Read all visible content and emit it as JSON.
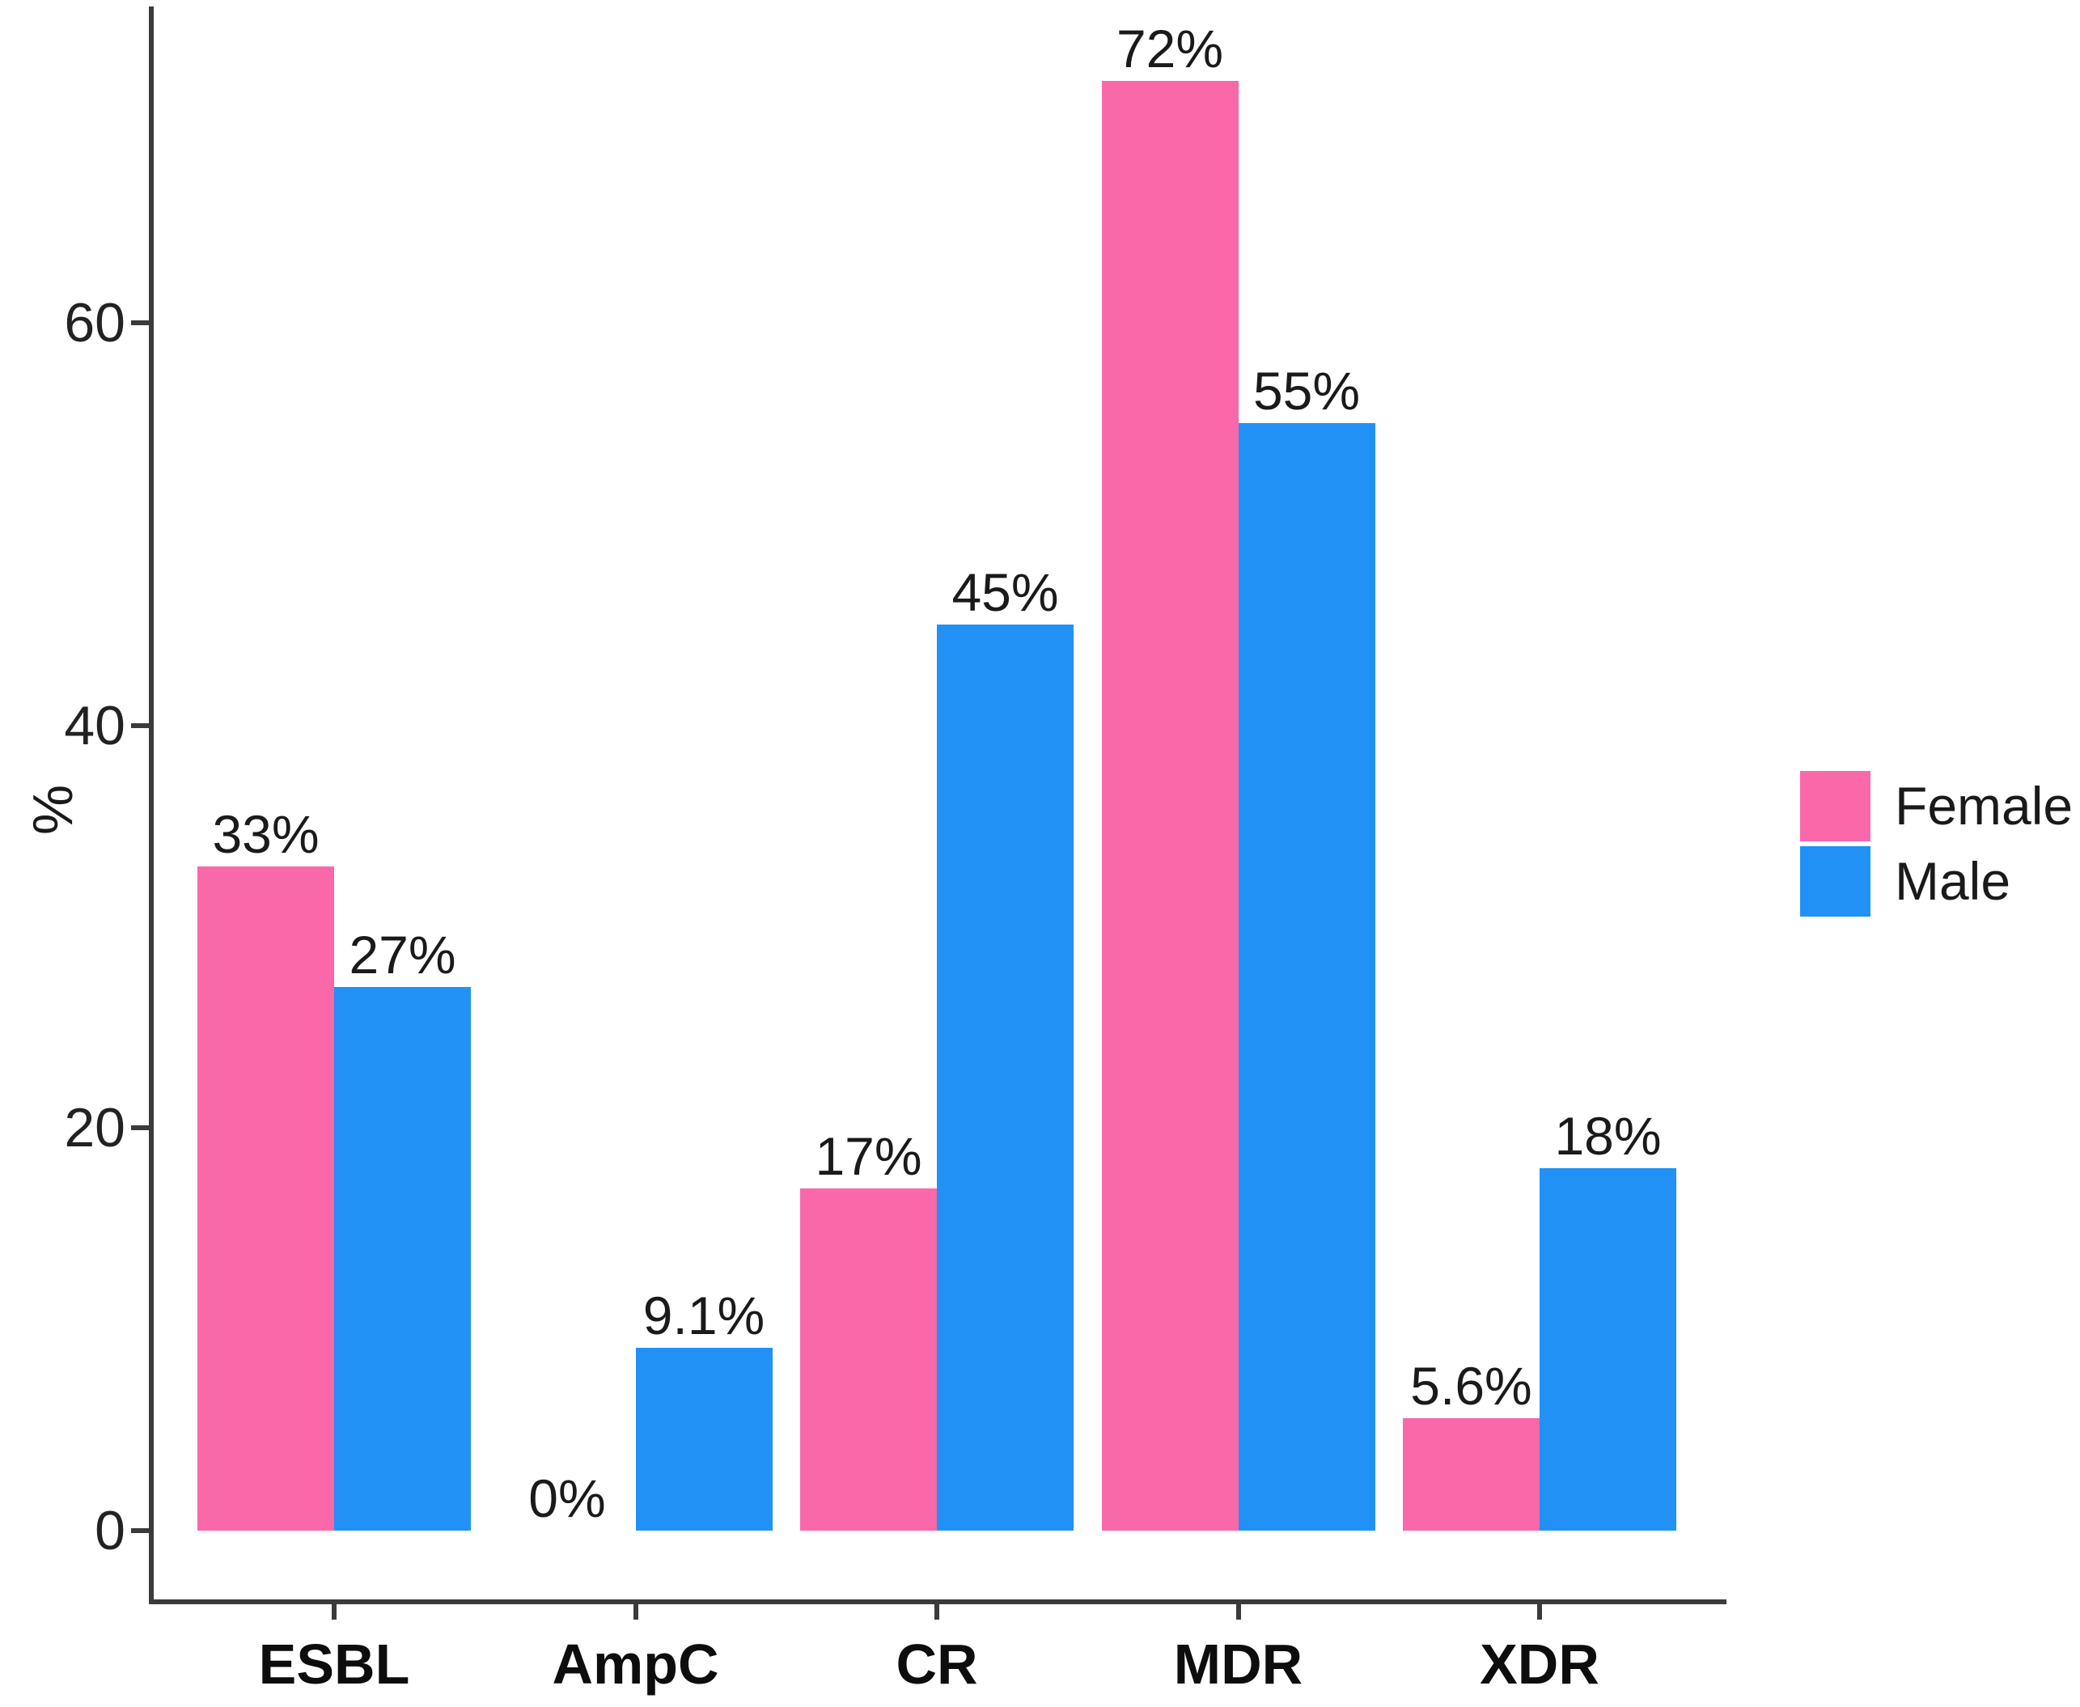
{
  "chart_data": {
    "type": "bar",
    "title": "",
    "ylabel": "%",
    "categories": [
      "ESBL",
      "AmpC",
      "CR",
      "MDR",
      "XDR"
    ],
    "series": [
      {
        "name": "Female",
        "color": "#F968A9",
        "values": [
          33,
          0,
          17,
          72,
          5.6
        ],
        "value_labels": [
          "33%",
          "0%",
          "17%",
          "72%",
          "5.6%"
        ]
      },
      {
        "name": "Male",
        "color": "#2191F5",
        "values": [
          27,
          9.1,
          45,
          55,
          18
        ],
        "value_labels": [
          "27%",
          "9.1%",
          "45%",
          "55%",
          "18%"
        ]
      }
    ],
    "y_ticks": [
      0,
      20,
      40,
      60
    ],
    "ylim": [
      0,
      76
    ],
    "grid": false,
    "legend_position": "right",
    "axis_color": "#3B3B3B",
    "text_color": "#1A1A1A"
  }
}
